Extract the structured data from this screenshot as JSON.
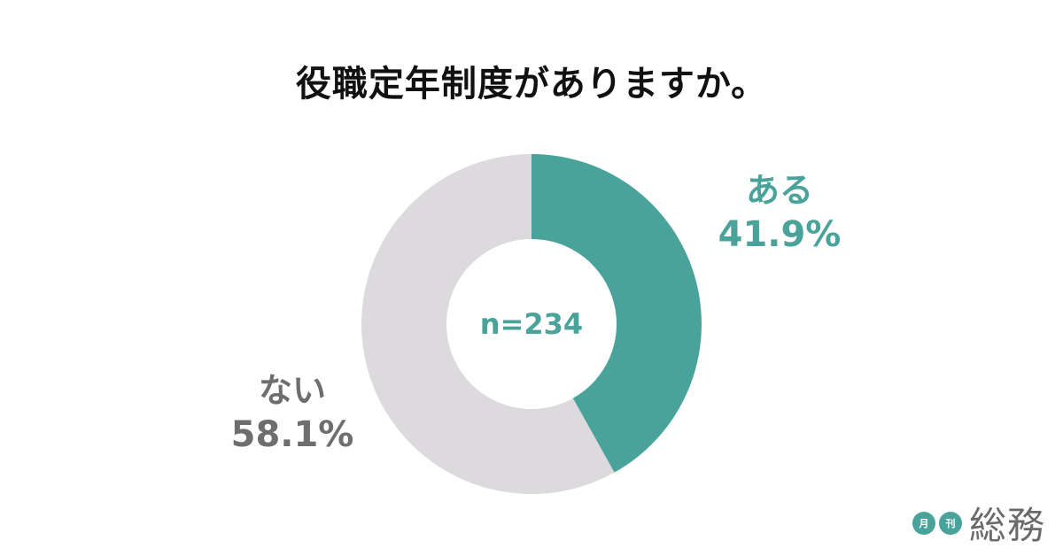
{
  "title": "役職定年制度がありますか。",
  "colors": {
    "accent": "#4aa39a",
    "gray_slice": "#dcdadd",
    "gray_text": "#6e6e6e",
    "title": "#111111"
  },
  "center_label": "n=234",
  "labels": {
    "yes": {
      "category": "ある",
      "percent": "41.9%"
    },
    "no": {
      "category": "ない",
      "percent": "58.1%"
    }
  },
  "logo": {
    "badge1": "月",
    "badge2": "刊",
    "name": "総務"
  },
  "chart_data": {
    "type": "pie",
    "variant": "donut",
    "title": "役職定年制度がありますか。",
    "categories": [
      "ある",
      "ない"
    ],
    "values": [
      41.9,
      58.1
    ],
    "unit": "%",
    "colors": [
      "#4aa39a",
      "#dcdadd"
    ],
    "sample_size": 234,
    "center_text": "n=234",
    "start_angle": "12 o'clock, clockwise",
    "legend": "none (direct labels)"
  }
}
